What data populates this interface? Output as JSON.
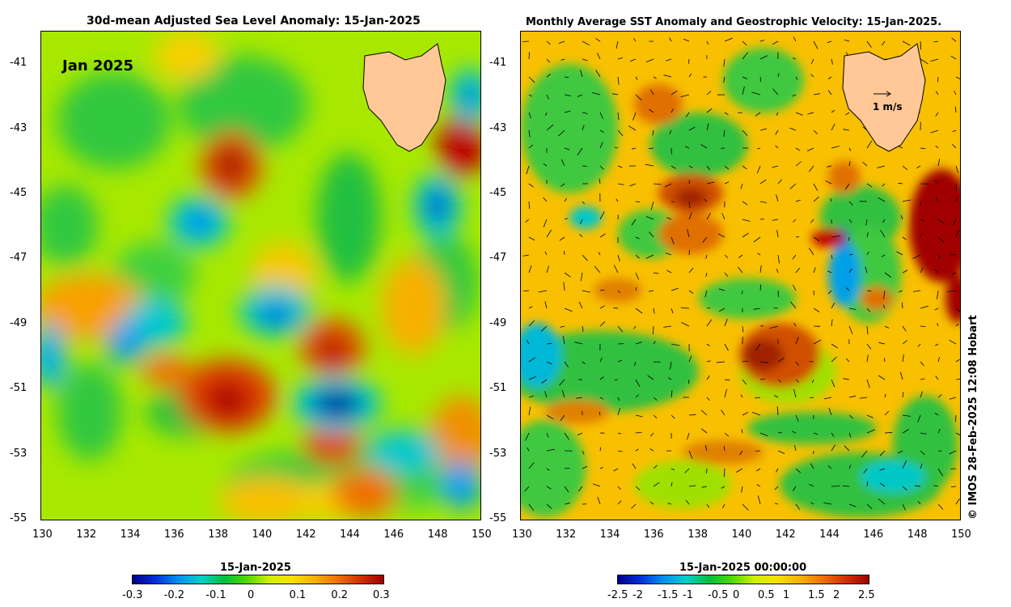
{
  "left_panel": {
    "title": "30d-mean Adjusted Sea Level Anomaly: 15-Jan-2025",
    "overlay_label": "Jan 2025",
    "colorbar_title": "15-Jan-2025",
    "colorbar_ticks": [
      "-0.3",
      "-0.2",
      "-0.1",
      "0",
      "0.1",
      "0.2",
      "0.3"
    ]
  },
  "right_panel": {
    "title": "Monthly Average SST Anomaly  and Geostrophic Velocity: 15-Jan-2025.",
    "velocity_legend": "1 m/s",
    "colorbar_title": "15-Jan-2025 00:00:00",
    "colorbar_ticks": [
      "-2.5",
      "-2",
      "-1.5",
      "-1",
      "-0.5",
      "0",
      "0.5",
      "1",
      "1.5",
      "2",
      "2.5"
    ]
  },
  "axes": {
    "x_ticks": [
      "130",
      "132",
      "134",
      "136",
      "138",
      "140",
      "142",
      "144",
      "146",
      "148",
      "150"
    ],
    "y_ticks": [
      "-41",
      "-43",
      "-45",
      "-47",
      "-49",
      "-51",
      "-53",
      "-55"
    ]
  },
  "credit": "© IMOS 28-Feb-2025 12:08 Hobart",
  "colors": {
    "land": "#ffc896",
    "colormap": [
      "#00008c",
      "#0030d8",
      "#0090f0",
      "#00d0c8",
      "#00c040",
      "#50d800",
      "#d0f000",
      "#f8e000",
      "#f8b000",
      "#f07000",
      "#d03000",
      "#a00000"
    ]
  }
}
